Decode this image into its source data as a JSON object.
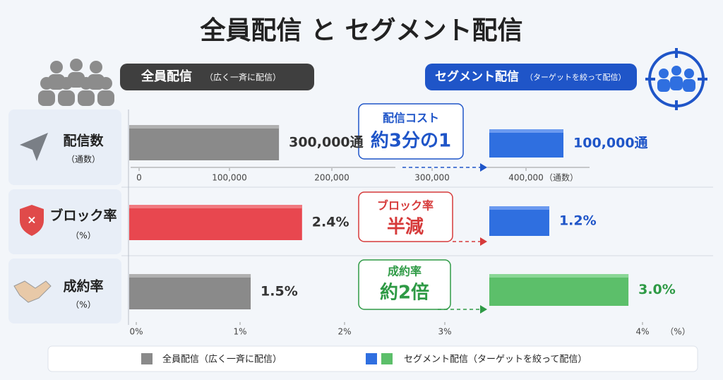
{
  "title": "全員配信 と セグメント配信",
  "left_header": {
    "main": "全員配信",
    "sub": "（広く一斉に配信）"
  },
  "right_header": {
    "main": "セグメント配信",
    "sub": "（ターゲットを絞って配信）"
  },
  "rows": [
    {
      "label": "配信数",
      "unit": "（通数）",
      "all": {
        "value": 300000,
        "label": "300,000通"
      },
      "segment": {
        "value": 100000,
        "label": "100,000通"
      },
      "callout": {
        "top": "配信コスト",
        "main": "約3分の1"
      }
    },
    {
      "label": "ブロック率",
      "unit": "（%）",
      "all": {
        "value": 2.4,
        "label": "2.4%"
      },
      "segment": {
        "value": 1.2,
        "label": "1.2%"
      },
      "callout": {
        "top": "ブロック率",
        "main": "半減"
      }
    },
    {
      "label": "成約率",
      "unit": "（%）",
      "all": {
        "value": 1.5,
        "label": "1.5%"
      },
      "segment": {
        "value": 3.0,
        "label": "3.0%"
      },
      "callout": {
        "top": "成約率",
        "main": "約2倍"
      }
    }
  ],
  "count_axis": {
    "ticks": [
      0,
      {
        "value": 100000,
        "label": "100,000"
      },
      {
        "value": 200000,
        "label": "200,000"
      },
      {
        "value": 300000,
        "label": "300,000"
      },
      {
        "value": 400000,
        "label": "400,000"
      }
    ],
    "unit": "（通数）"
  },
  "percent_axis": {
    "ticks": [
      {
        "value": 0,
        "label": "0%"
      },
      {
        "value": 1,
        "label": "1%"
      },
      {
        "value": 2,
        "label": "2%"
      },
      {
        "value": 3,
        "label": "3%"
      },
      {
        "value": 4,
        "label": "4%"
      }
    ],
    "unit": "（%）"
  },
  "legend": {
    "all": "全員配信（広く一斉に配信）",
    "segment": "セグメント配信（ターゲットを絞って配信）"
  }
}
